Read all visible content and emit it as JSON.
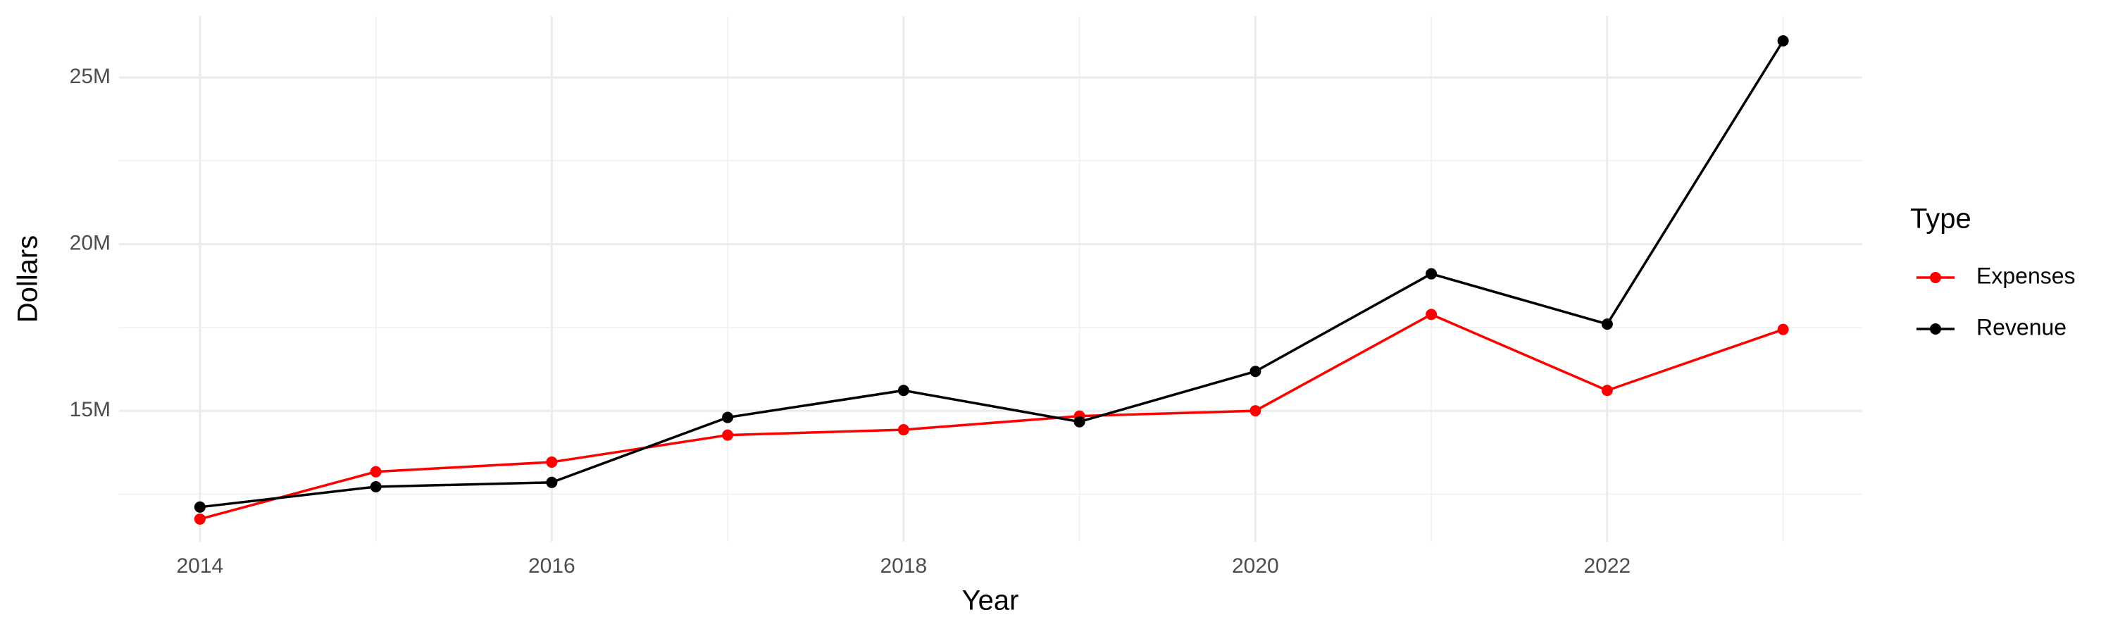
{
  "chart_data": {
    "type": "line",
    "x_label": "Year",
    "y_label": "Dollars",
    "legend_title": "Type",
    "x": [
      2014,
      2015,
      2016,
      2017,
      2018,
      2019,
      2020,
      2021,
      2022,
      2023
    ],
    "series": [
      {
        "name": "Expenses",
        "color": "#ff0000",
        "values": [
          11750000,
          13170000,
          13460000,
          14270000,
          14430000,
          14840000,
          15000000,
          17890000,
          15610000,
          17440000
        ]
      },
      {
        "name": "Revenue",
        "color": "#000000",
        "values": [
          12110000,
          12720000,
          12850000,
          14800000,
          15610000,
          14670000,
          16180000,
          19110000,
          17600000,
          26100000
        ]
      }
    ],
    "xlim": [
      2013.54,
      2023.45
    ],
    "xticks": [
      2014,
      2016,
      2018,
      2020,
      2022
    ],
    "x_minor_grid": [
      2015,
      2017,
      2019,
      2021,
      2023
    ],
    "ylim": [
      11070000,
      26840000
    ],
    "yticks": [
      {
        "value": 15000000,
        "label": "15M"
      },
      {
        "value": 20000000,
        "label": "20M"
      },
      {
        "value": 25000000,
        "label": "25M"
      }
    ],
    "y_minor_grid": [
      12500000,
      17500000,
      22500000
    ],
    "grid": true,
    "legend": "right"
  }
}
